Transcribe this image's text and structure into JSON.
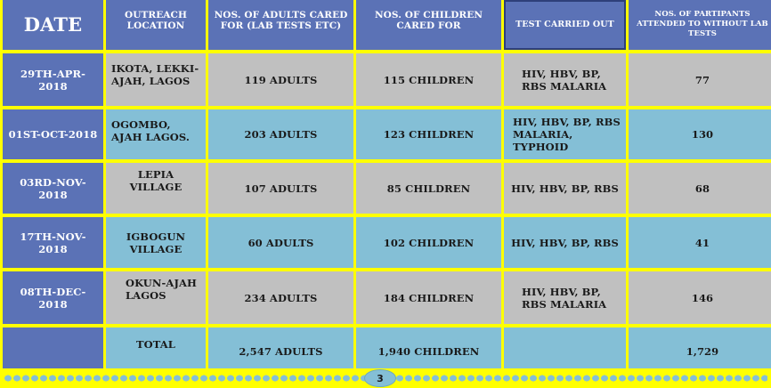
{
  "headers": {
    "date": "Date",
    "location": "OUTREACH LOCATION",
    "adults": "NOS. OF ADULTS CARED FOR (LAB TESTS etc)",
    "children": "NOS. OF CHILDREN CARED FOR",
    "tests": "TEST CARRIED OUT",
    "participants": "NOS. OF PARTIPANTS ATTENDED TO WITHOUT LAB TESTS"
  },
  "rows": [
    {
      "date": "29TH-APR-2018",
      "location": "IKOTA, LEKKI-AJAH, LAGOS",
      "adults": "119 ADULTS",
      "children": "115 CHILDREN",
      "tests": "HIV, HBV, BP, RBS MALARIA",
      "participants": "77"
    },
    {
      "date": "01ST-OCT-2018",
      "location": "OGOMBO, AJAH LAGOS.",
      "adults": "203 ADULTS",
      "children": "123 CHILDREN",
      "tests": "HIV, HBV, BP, RBS MALARIA, TYPHOID",
      "participants": "130"
    },
    {
      "date": "03RD-NOV-2018",
      "location": "LEPIA VILLAGE",
      "adults": "107 ADULTS",
      "children": "85 CHILDREN",
      "tests": "HIV, HBV, BP, RBS",
      "participants": "68"
    },
    {
      "date": "17TH-NOV-2018",
      "location": "IGBOGUN VILLAGE",
      "adults": "60 ADULTS",
      "children": "102 CHILDREN",
      "tests": "HIV, HBV, BP, RBS",
      "participants": "41"
    },
    {
      "date": "08TH-DEC-2018",
      "location": "OKUN-AJAH LAGOS",
      "adults": "234 ADULTS",
      "children": "184 CHILDREN",
      "tests": "HIV, HBV, BP, RBS MALARIA",
      "participants": "146"
    }
  ],
  "total": {
    "label": "TOTAL",
    "adults": "2,547 ADULTS",
    "children": "1,940 CHILDREN",
    "participants": "1,729"
  },
  "page_number": "3",
  "colors": {
    "header": "#5b72b6",
    "grey_row": "#c0c0c0",
    "blue_row": "#84bfd6",
    "background": "#ffff00"
  }
}
